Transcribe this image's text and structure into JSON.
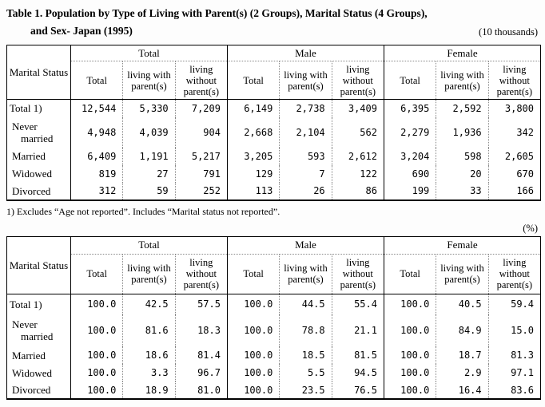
{
  "page": {
    "title_line1": "Table 1. Population by Type of Living with Parent(s) (2 Groups), Marital Status (4 Groups),",
    "title_line2": "and Sex- Japan (1995)",
    "unit_top": "(10 thousands)",
    "unit_bottom": "(%)",
    "footnote": "1) Excludes “Age not reported”. Includes “Marital status not reported”."
  },
  "header": {
    "row_label": "Marital Status",
    "groups": [
      "Total",
      "Male",
      "Female"
    ],
    "subcolumns": [
      "Total",
      "living with parent(s)",
      "living without parent(s)"
    ]
  },
  "table1": {
    "rows": [
      {
        "label": "Total 1)",
        "values": [
          "12,544",
          "5,330",
          "7,209",
          "6,149",
          "2,738",
          "3,409",
          "6,395",
          "2,592",
          "3,800"
        ]
      },
      {
        "label": "Never married",
        "values": [
          "4,948",
          "4,039",
          "904",
          "2,668",
          "2,104",
          "562",
          "2,279",
          "1,936",
          "342"
        ]
      },
      {
        "label": "Married",
        "values": [
          "6,409",
          "1,191",
          "5,217",
          "3,205",
          "593",
          "2,612",
          "3,204",
          "598",
          "2,605"
        ]
      },
      {
        "label": "Widowed",
        "values": [
          "819",
          "27",
          "791",
          "129",
          "7",
          "122",
          "690",
          "20",
          "670"
        ]
      },
      {
        "label": "Divorced",
        "values": [
          "312",
          "59",
          "252",
          "113",
          "26",
          "86",
          "199",
          "33",
          "166"
        ]
      }
    ]
  },
  "table2": {
    "rows": [
      {
        "label": "Total 1)",
        "values": [
          "100.0",
          "42.5",
          "57.5",
          "100.0",
          "44.5",
          "55.4",
          "100.0",
          "40.5",
          "59.4"
        ]
      },
      {
        "label": "Never married",
        "values": [
          "100.0",
          "81.6",
          "18.3",
          "100.0",
          "78.8",
          "21.1",
          "100.0",
          "84.9",
          "15.0"
        ]
      },
      {
        "label": "Married",
        "values": [
          "100.0",
          "18.6",
          "81.4",
          "100.0",
          "18.5",
          "81.5",
          "100.0",
          "18.7",
          "81.3"
        ]
      },
      {
        "label": "Widowed",
        "values": [
          "100.0",
          "3.3",
          "96.7",
          "100.0",
          "5.5",
          "94.5",
          "100.0",
          "2.9",
          "97.1"
        ]
      },
      {
        "label": "Divorced",
        "values": [
          "100.0",
          "18.9",
          "81.0",
          "100.0",
          "23.5",
          "76.5",
          "100.0",
          "16.4",
          "83.6"
        ]
      }
    ]
  }
}
